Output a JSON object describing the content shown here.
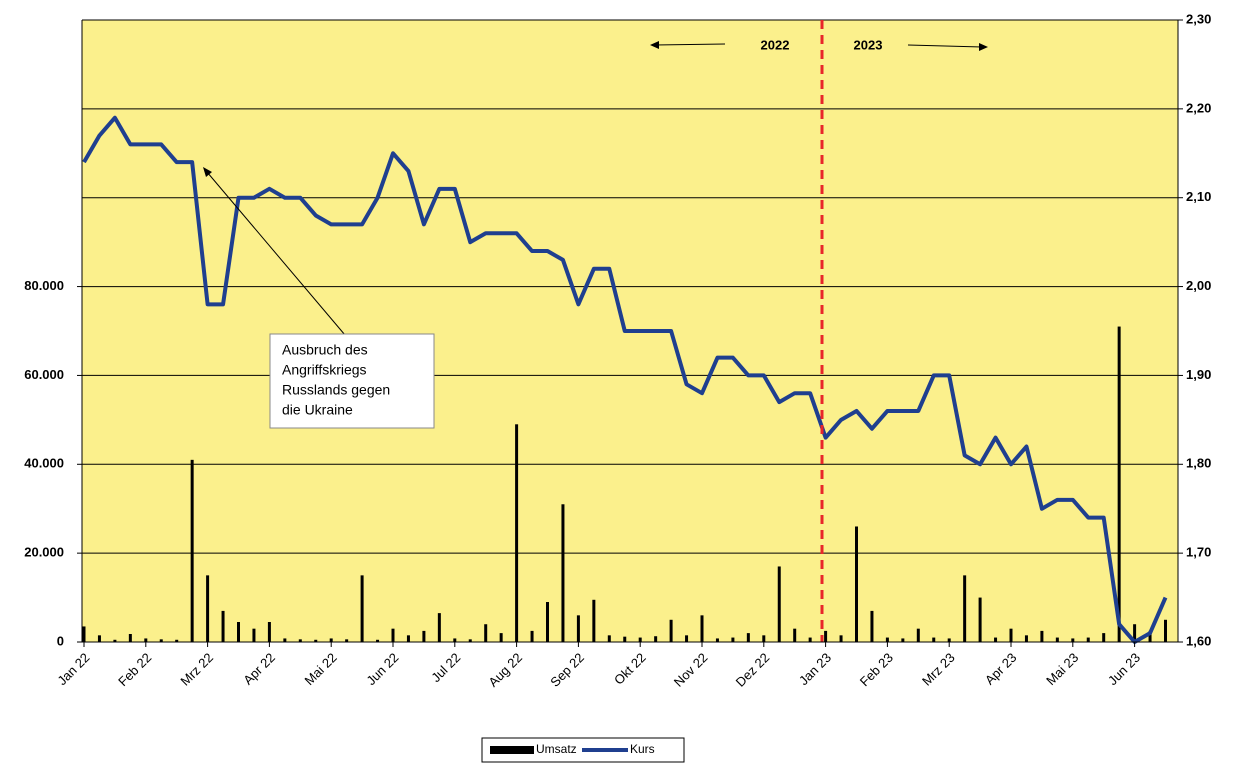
{
  "chart_data": {
    "type": "bar_line",
    "categories": [
      "Jan 22",
      null,
      null,
      null,
      "Feb 22",
      null,
      null,
      null,
      "Mrz 22",
      null,
      null,
      null,
      "Apr 22",
      null,
      null,
      null,
      "Mai 22",
      null,
      null,
      null,
      "Jun 22",
      null,
      null,
      null,
      "Jul 22",
      null,
      null,
      null,
      "Aug 22",
      null,
      null,
      null,
      "Sep 22",
      null,
      null,
      null,
      "Okt 22",
      null,
      null,
      null,
      "Nov 22",
      null,
      null,
      null,
      "Dez 22",
      null,
      null,
      null,
      "Jan 23",
      null,
      null,
      null,
      "Feb 23",
      null,
      null,
      null,
      "Mrz 23",
      null,
      null,
      null,
      "Apr 23",
      null,
      null,
      null,
      "Mai 23",
      null,
      null,
      null,
      "Jun 23",
      null,
      null
    ],
    "series": [
      {
        "name": "Umsatz",
        "color": "#000000",
        "type": "bar",
        "values": [
          3500,
          1500,
          500,
          1800,
          800,
          600,
          500,
          41000,
          15000,
          7000,
          4500,
          3000,
          4500,
          800,
          600,
          500,
          800,
          600,
          15000,
          500,
          3000,
          1500,
          2500,
          6500,
          800,
          600,
          4000,
          2000,
          49000,
          2500,
          9000,
          31000,
          6000,
          9500,
          1500,
          1200,
          1000,
          1300,
          5000,
          1500,
          6000,
          800,
          1000,
          2000,
          1500,
          17000,
          3000,
          1000,
          2500,
          1500,
          26000,
          7000,
          1000,
          800,
          3000,
          1000,
          800,
          15000,
          10000,
          1000,
          3000,
          1500,
          2500,
          1000,
          800,
          1000,
          2000,
          71000,
          4000,
          2500,
          5000
        ]
      },
      {
        "name": "Kurs",
        "color": "#1f3f8f",
        "type": "line",
        "axis": "y2",
        "values": [
          2.14,
          2.17,
          2.19,
          2.16,
          2.16,
          2.16,
          2.14,
          2.14,
          1.98,
          1.98,
          2.1,
          2.1,
          2.11,
          2.1,
          2.1,
          2.08,
          2.07,
          2.07,
          2.07,
          2.1,
          2.15,
          2.13,
          2.07,
          2.11,
          2.11,
          2.05,
          2.06,
          2.06,
          2.06,
          2.04,
          2.04,
          2.03,
          1.98,
          2.02,
          2.02,
          1.95,
          1.95,
          1.95,
          1.95,
          1.89,
          1.88,
          1.92,
          1.92,
          1.9,
          1.9,
          1.87,
          1.88,
          1.88,
          1.83,
          1.85,
          1.86,
          1.84,
          1.86,
          1.86,
          1.86,
          1.9,
          1.9,
          1.81,
          1.8,
          1.83,
          1.8,
          1.82,
          1.75,
          1.76,
          1.76,
          1.74,
          1.74,
          1.62,
          1.6,
          1.61,
          1.65
        ]
      }
    ],
    "ylim": [
      0,
      140000
    ],
    "yticks": [
      0,
      {
        "value": 20000,
        "label": "20.000"
      },
      {
        "value": 40000,
        "label": "40.000"
      },
      {
        "value": 60000,
        "label": "60.000"
      },
      {
        "value": 80000,
        "label": "80.000"
      }
    ],
    "y2lim": [
      1.6,
      2.3
    ],
    "y2ticks": [
      {
        "value": 1.6,
        "label": "1,60"
      },
      {
        "value": 1.7,
        "label": "1,70"
      },
      {
        "value": 1.8,
        "label": "1,80"
      },
      {
        "value": 1.9,
        "label": "1,90"
      },
      {
        "value": 2.0,
        "label": "2,00"
      },
      {
        "value": 2.1,
        "label": "2,10"
      },
      {
        "value": 2.2,
        "label": "2,20"
      },
      {
        "value": 2.3,
        "label": "2,30"
      }
    ],
    "grid": true,
    "annotations": {
      "left_year": "2022",
      "right_year": "2023",
      "note": [
        "Ausbruch des",
        "Angriffskriegs",
        "Russlands gegen",
        "die Ukraine"
      ]
    },
    "legend": "bottom"
  }
}
